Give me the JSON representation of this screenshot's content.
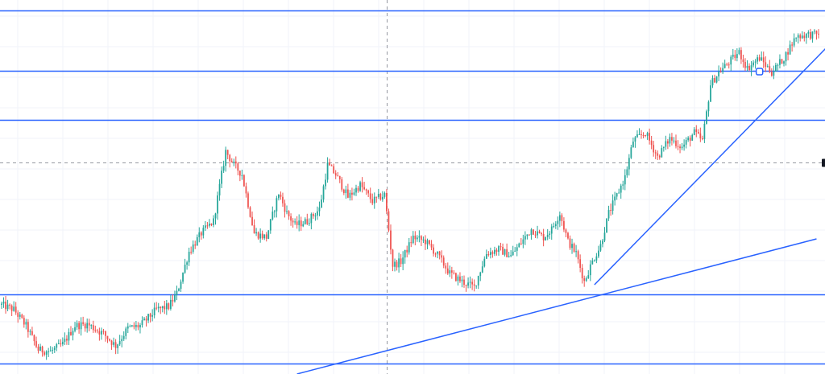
{
  "chart_data": {
    "type": "candlestick",
    "title": "",
    "xlabel": "",
    "ylabel": "",
    "grid": true,
    "y_range": [
      0,
      465
    ],
    "colors": {
      "up": "#26a69a",
      "down": "#ef5350",
      "level_line": "#2962ff",
      "trend_line": "#2962ff",
      "grid": "#f0f3fa",
      "crosshair": "#9598a1"
    },
    "horizontal_levels": [
      452,
      377,
      316,
      99,
      13
    ],
    "trend_lines": [
      {
        "name": "",
        "from": {
          "bar": 145,
          "price": 0
        },
        "to": {
          "bar": 400,
          "price": 168
        }
      },
      {
        "name": "",
        "from": {
          "bar": 291,
          "price": 111
        },
        "to": {
          "bar": 410,
          "price": 419
        }
      }
    ],
    "crosshair": {
      "bar": 189,
      "price": 263
    },
    "series": [
      {
        "name": "",
        "candle_count": 402,
        "close_path": [
          [
            0,
            86
          ],
          [
            6,
            80
          ],
          [
            12,
            60
          ],
          [
            18,
            30
          ],
          [
            24,
            28
          ],
          [
            30,
            37
          ],
          [
            36,
            60
          ],
          [
            42,
            62
          ],
          [
            50,
            50
          ],
          [
            56,
            35
          ],
          [
            62,
            57
          ],
          [
            68,
            60
          ],
          [
            76,
            80
          ],
          [
            82,
            84
          ],
          [
            86,
            100
          ],
          [
            92,
            152
          ],
          [
            98,
            175
          ],
          [
            104,
            190
          ],
          [
            110,
            277
          ],
          [
            114,
            260
          ],
          [
            118,
            248
          ],
          [
            124,
            175
          ],
          [
            130,
            170
          ],
          [
            136,
            225
          ],
          [
            140,
            200
          ],
          [
            144,
            185
          ],
          [
            150,
            190
          ],
          [
            156,
            205
          ],
          [
            160,
            260
          ],
          [
            164,
            248
          ],
          [
            170,
            220
          ],
          [
            176,
            235
          ],
          [
            182,
            215
          ],
          [
            188,
            223
          ],
          [
            192,
            135
          ],
          [
            196,
            140
          ],
          [
            202,
            170
          ],
          [
            208,
            165
          ],
          [
            214,
            148
          ],
          [
            220,
            125
          ],
          [
            226,
            115
          ],
          [
            232,
            108
          ],
          [
            238,
            150
          ],
          [
            244,
            155
          ],
          [
            250,
            147
          ],
          [
            254,
            160
          ],
          [
            260,
            180
          ],
          [
            266,
            170
          ],
          [
            270,
            180
          ],
          [
            274,
            200
          ],
          [
            278,
            165
          ],
          [
            282,
            150
          ],
          [
            286,
            115
          ],
          [
            290,
            140
          ],
          [
            294,
            160
          ],
          [
            298,
            200
          ],
          [
            302,
            222
          ],
          [
            306,
            245
          ],
          [
            310,
            290
          ],
          [
            316,
            300
          ],
          [
            322,
            270
          ],
          [
            328,
            293
          ],
          [
            334,
            282
          ],
          [
            340,
            300
          ],
          [
            344,
            290
          ],
          [
            348,
            360
          ],
          [
            352,
            375
          ],
          [
            356,
            385
          ],
          [
            362,
            400
          ],
          [
            366,
            380
          ],
          [
            372,
            393
          ],
          [
            378,
            375
          ],
          [
            384,
            393
          ],
          [
            390,
            420
          ],
          [
            396,
            422
          ],
          [
            400,
            422
          ],
          [
            401,
            425
          ]
        ]
      }
    ],
    "markers": [
      {
        "name": "anchor-handle",
        "bar": 372,
        "price": 376
      }
    ]
  }
}
